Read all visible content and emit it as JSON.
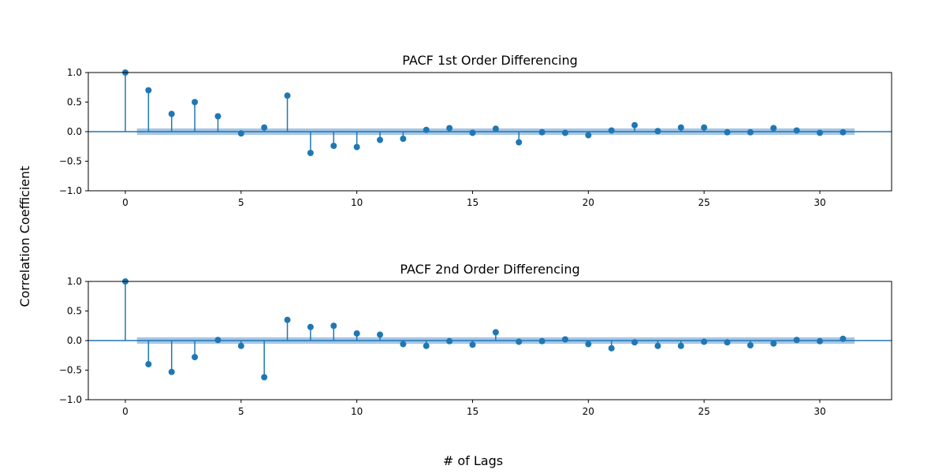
{
  "figure": {
    "xlabel": "# of Lags",
    "ylabel": "Correlation Coefficient"
  },
  "colors": {
    "stem": "#1f77b4",
    "band": "#a6c6e4",
    "axis": "#000000"
  },
  "chart_data": [
    {
      "type": "stem",
      "title": "PACF 1st Order Differencing",
      "xlim": [
        -1.6,
        33.1
      ],
      "ylim": [
        -1.0,
        1.0
      ],
      "xticks": [
        0,
        5,
        10,
        15,
        20,
        25,
        30
      ],
      "yticks": [
        1.0,
        0.5,
        0.0,
        -0.5,
        -1.0
      ],
      "ytick_labels": [
        "1.0",
        "0.5",
        "0.0",
        "−0.5",
        "−1.0"
      ],
      "confidence_band": {
        "x_range": [
          0.5,
          31.5
        ],
        "halfwidth": 0.055
      },
      "x": [
        0,
        1,
        2,
        3,
        4,
        5,
        6,
        7,
        8,
        9,
        10,
        11,
        12,
        13,
        14,
        15,
        16,
        17,
        18,
        19,
        20,
        21,
        22,
        23,
        24,
        25,
        26,
        27,
        28,
        29,
        30,
        31
      ],
      "values": [
        1.0,
        0.7,
        0.3,
        0.5,
        0.26,
        -0.03,
        0.07,
        0.61,
        -0.36,
        -0.24,
        -0.26,
        -0.14,
        -0.12,
        0.03,
        0.06,
        -0.02,
        0.05,
        -0.18,
        -0.01,
        -0.02,
        -0.06,
        0.02,
        0.11,
        0.01,
        0.07,
        0.07,
        -0.01,
        -0.01,
        0.06,
        0.02,
        -0.02,
        -0.01
      ]
    },
    {
      "type": "stem",
      "title": "PACF 2nd Order Differencing",
      "xlim": [
        -1.6,
        33.1
      ],
      "ylim": [
        -1.0,
        1.0
      ],
      "xticks": [
        0,
        5,
        10,
        15,
        20,
        25,
        30
      ],
      "yticks": [
        1.0,
        0.5,
        0.0,
        -0.5,
        -1.0
      ],
      "ytick_labels": [
        "1.0",
        "0.5",
        "0.0",
        "−0.5",
        "−1.0"
      ],
      "confidence_band": {
        "x_range": [
          0.5,
          31.5
        ],
        "halfwidth": 0.055
      },
      "x": [
        0,
        1,
        2,
        3,
        4,
        5,
        6,
        7,
        8,
        9,
        10,
        11,
        12,
        13,
        14,
        15,
        16,
        17,
        18,
        19,
        20,
        21,
        22,
        23,
        24,
        25,
        26,
        27,
        28,
        29,
        30,
        31
      ],
      "values": [
        1.0,
        -0.4,
        -0.53,
        -0.28,
        0.01,
        -0.09,
        -0.62,
        0.35,
        0.23,
        0.25,
        0.12,
        0.1,
        -0.06,
        -0.09,
        -0.01,
        -0.07,
        0.14,
        -0.02,
        -0.01,
        0.02,
        -0.06,
        -0.13,
        -0.03,
        -0.09,
        -0.09,
        -0.02,
        -0.03,
        -0.08,
        -0.05,
        0.01,
        -0.01,
        0.03
      ]
    }
  ]
}
